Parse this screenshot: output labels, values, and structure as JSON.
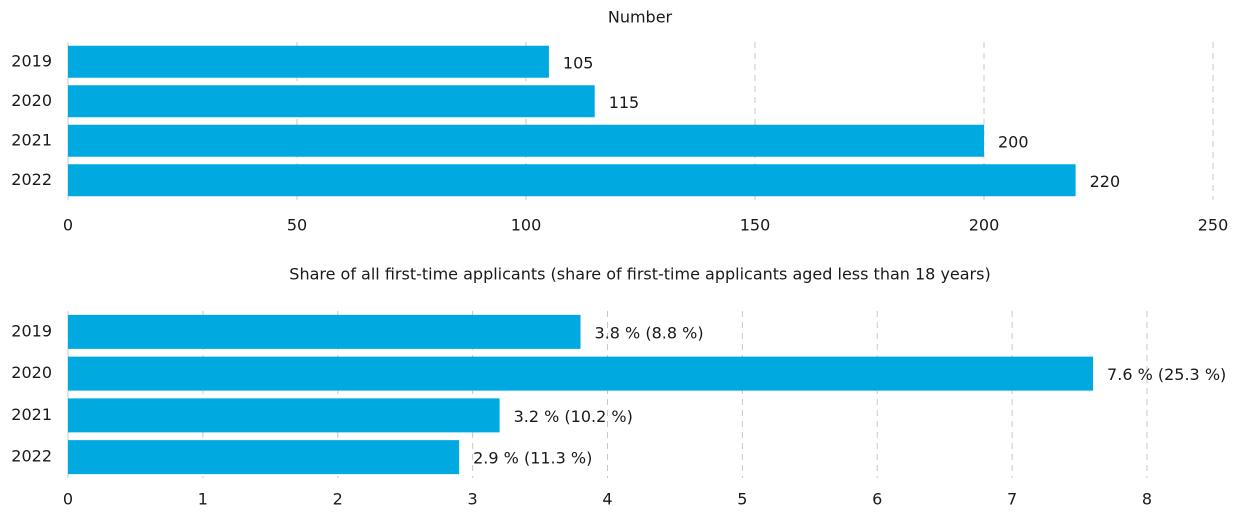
{
  "chart_data": [
    {
      "type": "bar",
      "orientation": "horizontal",
      "title": "Number",
      "categories": [
        "2019",
        "2020",
        "2021",
        "2022"
      ],
      "values": [
        105,
        115,
        200,
        220
      ],
      "color": "#00a9e0",
      "xlim": [
        0,
        250
      ],
      "xticks": [
        0,
        50,
        100,
        150,
        200,
        250
      ],
      "grid": true
    },
    {
      "type": "bar",
      "orientation": "horizontal",
      "title": "Share of all first-time applicants (share of first-time applicants aged less than 18 years)",
      "categories": [
        "2019",
        "2020",
        "2021",
        "2022"
      ],
      "values": [
        3.8,
        7.6,
        3.2,
        2.9
      ],
      "value_labels": [
        "3.8 % (8.8 %)",
        "7.6 % (25.3 %)",
        "3.2 % (10.2 %)",
        "2.9 % (11.3 %)"
      ],
      "color": "#00a9e0",
      "xlim": [
        0,
        8
      ],
      "xticks": [
        0,
        1,
        2,
        3,
        4,
        5,
        6,
        7,
        8
      ],
      "grid": true
    }
  ]
}
